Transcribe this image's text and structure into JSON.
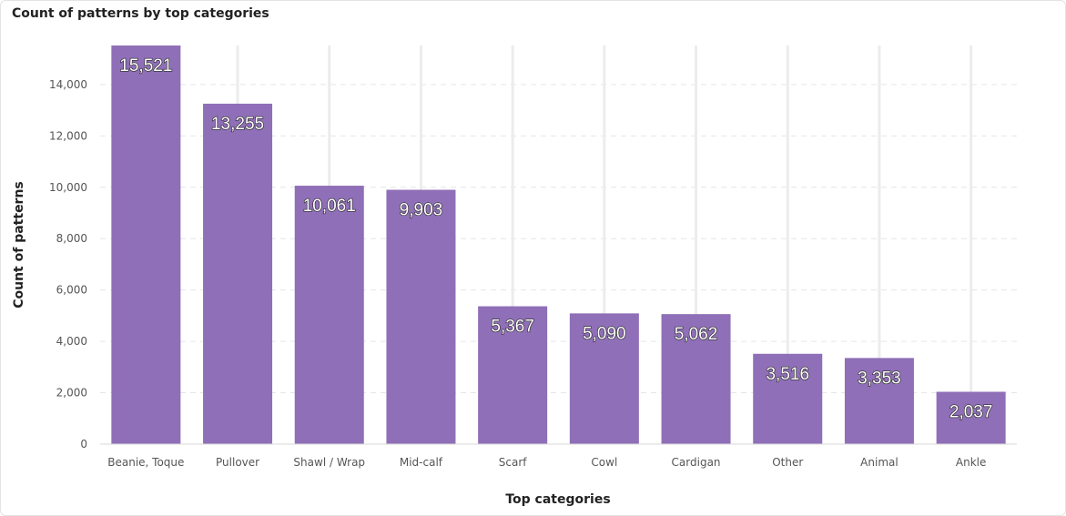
{
  "chart_data": {
    "type": "bar",
    "title": "Count of patterns by top categories",
    "xlabel": "Top categories",
    "ylabel": "Count of patterns",
    "categories": [
      "Beanie, Toque",
      "Pullover",
      "Shawl / Wrap",
      "Mid-calf",
      "Scarf",
      "Cowl",
      "Cardigan",
      "Other",
      "Animal",
      "Ankle"
    ],
    "values": [
      15521,
      13255,
      10061,
      9903,
      5367,
      5090,
      5062,
      3516,
      3353,
      2037
    ],
    "value_labels": [
      "15,521",
      "13,255",
      "10,061",
      "9,903",
      "5,367",
      "5,090",
      "5,062",
      "3,516",
      "3,353",
      "2,037"
    ],
    "yticks": [
      0,
      2000,
      4000,
      6000,
      8000,
      10000,
      12000,
      14000
    ],
    "ytick_labels": [
      "0",
      "2,000",
      "4,000",
      "6,000",
      "8,000",
      "10,000",
      "12,000",
      "14,000"
    ],
    "ylim": [
      0,
      15521
    ],
    "grid": true,
    "legend": "none",
    "colors": {
      "bar": "#8f6fb7",
      "grid": "#e6e6e6"
    }
  }
}
